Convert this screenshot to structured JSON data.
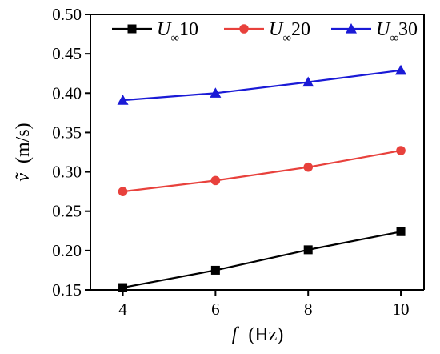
{
  "chart_data": {
    "type": "line",
    "title": "",
    "xlabel": {
      "symbol": "f",
      "unit": "(Hz)"
    },
    "ylabel": {
      "symbol": "ṽ",
      "unit": "(m/s)"
    },
    "xlim": [
      3.3,
      10.5
    ],
    "ylim": [
      0.15,
      0.5
    ],
    "xticks": [
      4,
      6,
      8,
      10
    ],
    "yticks": [
      "0.15",
      "0.20",
      "0.25",
      "0.30",
      "0.35",
      "0.40",
      "0.45",
      "0.50"
    ],
    "x": [
      4,
      6,
      8,
      10
    ],
    "grid": false,
    "legend_placement": "top",
    "series": [
      {
        "name": "U∞10",
        "legend": {
          "base": "U",
          "sub": "∞",
          "tail": "10"
        },
        "color": "#000000",
        "marker": "square",
        "values": [
          0.153,
          0.175,
          0.201,
          0.224
        ]
      },
      {
        "name": "U∞20",
        "legend": {
          "base": "U",
          "sub": "∞",
          "tail": "20"
        },
        "color": "#e8413c",
        "marker": "circle",
        "values": [
          0.275,
          0.289,
          0.306,
          0.327
        ]
      },
      {
        "name": "U∞30",
        "legend": {
          "base": "U",
          "sub": "∞",
          "tail": "30"
        },
        "color": "#1a1ad6",
        "marker": "triangle",
        "values": [
          0.391,
          0.4,
          0.414,
          0.429
        ]
      }
    ]
  }
}
